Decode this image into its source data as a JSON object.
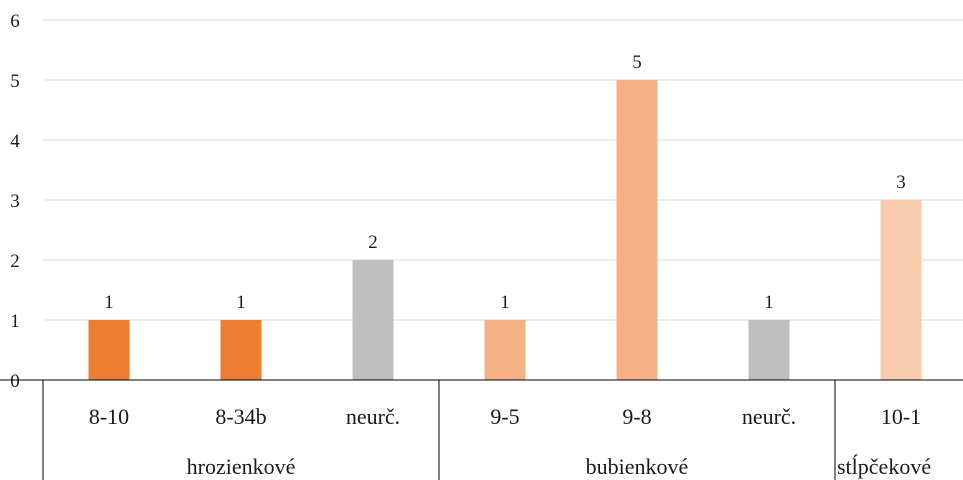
{
  "chart_data": {
    "type": "bar",
    "title": "",
    "xlabel": "",
    "ylabel": "",
    "ylim": [
      0,
      6
    ],
    "y_ticks": [
      "0",
      "1",
      "2",
      "3",
      "4",
      "5",
      "6"
    ],
    "grid": true,
    "legend": "none",
    "categories": [
      "8-10",
      "8-34b",
      "neurč.",
      "9-5",
      "9-8",
      "neurč.",
      "10-1"
    ],
    "values": [
      1,
      1,
      2,
      1,
      5,
      1,
      3
    ],
    "data_labels": [
      "1",
      "1",
      "2",
      "1",
      "5",
      "1",
      "3"
    ],
    "bar_colors": [
      "#ed7d31",
      "#ed7d31",
      "#bfbfbf",
      "#f4b183",
      "#f4b183",
      "#bfbfbf",
      "#f8cbad"
    ],
    "groups": [
      {
        "label": "hrozienkové",
        "start": 0,
        "end": 2
      },
      {
        "label": "bubienkové",
        "start": 3,
        "end": 5
      },
      {
        "label": "stĺpčekové",
        "start": 6,
        "end": 6
      }
    ],
    "colors": {
      "gridline": "#d9d9d9",
      "axis": "#000000",
      "text": "#1a1a1a"
    }
  }
}
